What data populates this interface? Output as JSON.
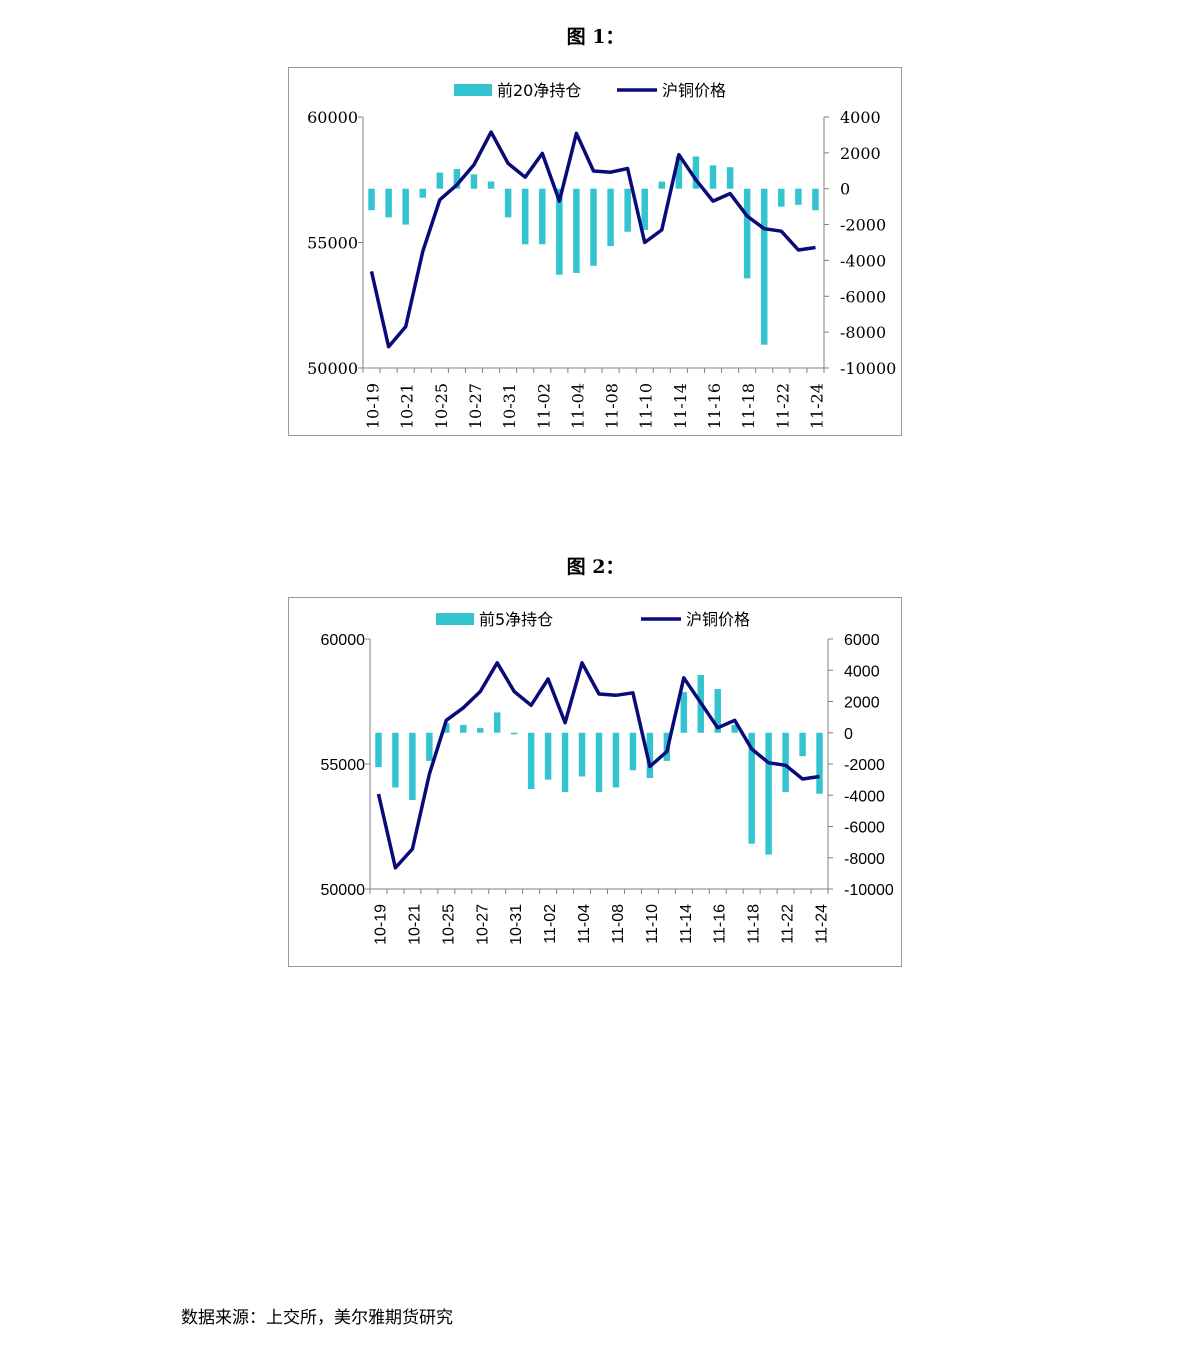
{
  "figures": [
    {
      "title": "图 1："
    },
    {
      "title": "图 2："
    }
  ],
  "source": "数据来源：上交所，美尔雅期货研究",
  "colors": {
    "bar": "#33c4d0",
    "line": "#0a0a78",
    "axis": "#808080",
    "frame": "#9a9a9a"
  },
  "chart_data": [
    {
      "type": "bar+line",
      "title": "图 1：",
      "categories": [
        "10-19",
        "10-20",
        "10-21",
        "10-24",
        "10-25",
        "10-26",
        "10-27",
        "10-28",
        "10-31",
        "11-01",
        "11-02",
        "11-03",
        "11-04",
        "11-07",
        "11-08",
        "11-09",
        "11-10",
        "11-11",
        "11-14",
        "11-15",
        "11-16",
        "11-17",
        "11-18",
        "11-21",
        "11-22",
        "11-23",
        "11-24"
      ],
      "tick_labels": [
        "10-19",
        "10-21",
        "10-25",
        "10-27",
        "10-31",
        "11-02",
        "11-04",
        "11-08",
        "11-10",
        "11-14",
        "11-16",
        "11-18",
        "11-22",
        "11-24"
      ],
      "series": [
        {
          "name": "前20净持仓",
          "type": "bar",
          "axis": "right",
          "values": [
            -1200,
            -1600,
            -2000,
            -500,
            900,
            1100,
            800,
            400,
            -1600,
            -3100,
            -3100,
            -4800,
            -4700,
            -4300,
            -3200,
            -2400,
            -2300,
            400,
            1800,
            1800,
            1300,
            1200,
            -5000,
            -8700,
            -1000,
            -900,
            -1200
          ]
        },
        {
          "name": "沪铜价格",
          "type": "line",
          "axis": "left",
          "values": [
            53850,
            50850,
            51650,
            54650,
            56700,
            57300,
            58100,
            59400,
            58150,
            57600,
            58550,
            56650,
            59350,
            57850,
            57800,
            57950,
            55000,
            55500,
            58500,
            57500,
            56650,
            56950,
            56050,
            55550,
            55450,
            54700,
            54800
          ]
        }
      ],
      "ylim_left": [
        50000,
        60000
      ],
      "yticks_left": [
        "60000",
        "55000",
        "50000"
      ],
      "ylim_right": [
        -10000,
        4000
      ],
      "yticks_right": [
        "4000",
        "2000",
        "0",
        "-2000",
        "-4000",
        "-6000",
        "-8000",
        "-10000"
      ]
    },
    {
      "type": "bar+line",
      "title": "图 2：",
      "categories": [
        "10-19",
        "10-20",
        "10-21",
        "10-24",
        "10-25",
        "10-26",
        "10-27",
        "10-28",
        "10-31",
        "11-01",
        "11-02",
        "11-03",
        "11-04",
        "11-07",
        "11-08",
        "11-09",
        "11-10",
        "11-11",
        "11-14",
        "11-15",
        "11-16",
        "11-17",
        "11-18",
        "11-21",
        "11-22",
        "11-23",
        "11-24"
      ],
      "tick_labels": [
        "10-19",
        "10-21",
        "10-25",
        "10-27",
        "10-31",
        "11-02",
        "11-04",
        "11-08",
        "11-10",
        "11-14",
        "11-16",
        "11-18",
        "11-22",
        "11-24"
      ],
      "series": [
        {
          "name": "前5净持仓",
          "type": "bar",
          "axis": "right",
          "values": [
            -2200,
            -3500,
            -4300,
            -1800,
            600,
            500,
            300,
            1300,
            -100,
            -3600,
            -3000,
            -3800,
            -2800,
            -3800,
            -3500,
            -2400,
            -2900,
            -1800,
            2600,
            3700,
            2800,
            500,
            -7100,
            -7800,
            -3800,
            -1500,
            -3900
          ]
        },
        {
          "name": "沪铜价格",
          "type": "line",
          "axis": "left",
          "values": [
            53800,
            50850,
            51600,
            54600,
            56750,
            57250,
            57900,
            59050,
            57900,
            57350,
            58400,
            56650,
            59050,
            57800,
            57750,
            57850,
            54900,
            55500,
            58450,
            57450,
            56450,
            56750,
            55600,
            55050,
            54950,
            54400,
            54500
          ]
        }
      ],
      "ylim_left": [
        50000,
        60000
      ],
      "yticks_left": [
        "60000",
        "55000",
        "50000"
      ],
      "ylim_right": [
        -10000,
        6000
      ],
      "yticks_right": [
        "6000",
        "4000",
        "2000",
        "0",
        "-2000",
        "-4000",
        "-6000",
        "-8000",
        "-10000"
      ]
    }
  ]
}
